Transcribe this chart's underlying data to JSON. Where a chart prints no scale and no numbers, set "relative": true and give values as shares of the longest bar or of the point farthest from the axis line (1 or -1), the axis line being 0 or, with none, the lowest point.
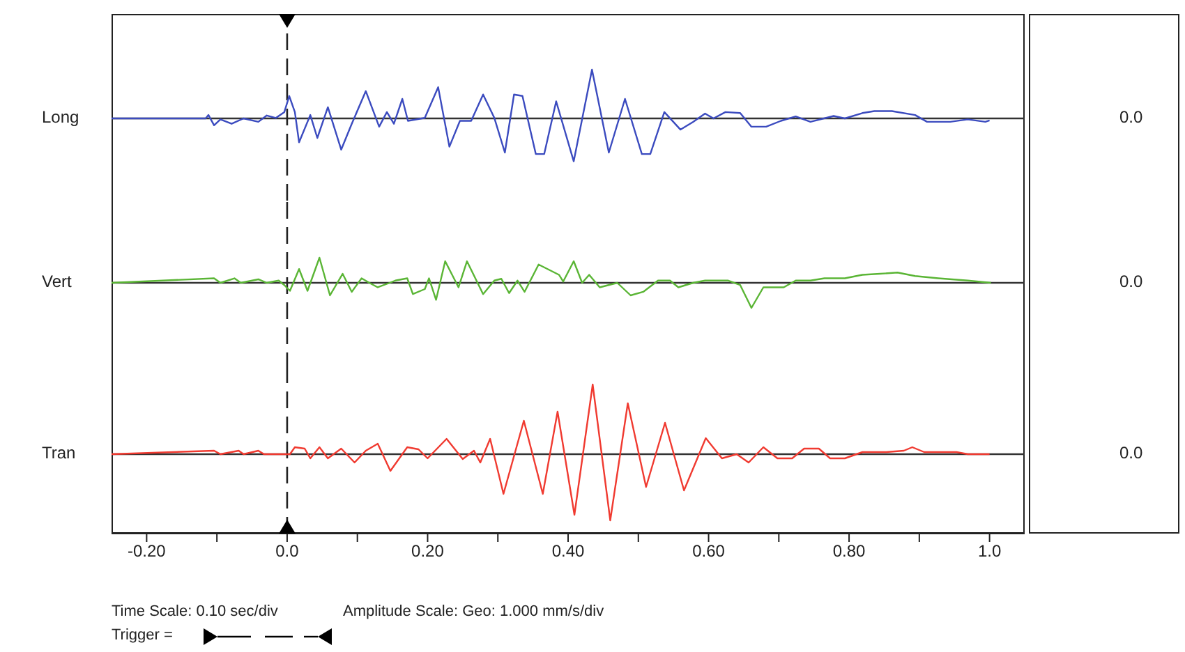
{
  "chart_data": [
    {
      "type": "line",
      "relative": true,
      "xlim": [
        -0.25,
        1.05
      ],
      "tick_labels": false,
      "series": [
        {
          "name": "Long",
          "color": "#3b4bbf",
          "x": [
            -0.25,
            -0.116,
            -0.112,
            -0.104,
            -0.095,
            -0.079,
            -0.062,
            -0.041,
            -0.029,
            -0.016,
            -0.004,
            0.003,
            0.011,
            0.017,
            0.033,
            0.043,
            0.058,
            0.077,
            0.092,
            0.112,
            0.131,
            0.142,
            0.152,
            0.164,
            0.172,
            0.196,
            0.215,
            0.231,
            0.246,
            0.262,
            0.279,
            0.295,
            0.31,
            0.323,
            0.335,
            0.354,
            0.366,
            0.383,
            0.408,
            0.434,
            0.458,
            0.481,
            0.505,
            0.517,
            0.537,
            0.56,
            0.578,
            0.595,
            0.607,
            0.624,
            0.645,
            0.661,
            0.682,
            0.703,
            0.724,
            0.745,
            0.778,
            0.794,
            0.819,
            0.836,
            0.861,
            0.894,
            0.911,
            0.944,
            0.969,
            0.994,
            1.0
          ],
          "values": [
            0,
            0,
            0.07,
            -0.14,
            -0.02,
            -0.11,
            0,
            -0.07,
            0.06,
            0.01,
            0.13,
            0.46,
            0.13,
            -0.49,
            0.07,
            -0.4,
            0.23,
            -0.64,
            -0.11,
            0.56,
            -0.17,
            0.13,
            -0.11,
            0.4,
            -0.05,
            0.01,
            0.64,
            -0.58,
            -0.05,
            -0.05,
            0.49,
            0.01,
            -0.7,
            0.49,
            0.46,
            -0.73,
            -0.73,
            0.35,
            -0.88,
            1,
            -0.7,
            0.4,
            -0.73,
            -0.73,
            0.13,
            -0.23,
            -0.07,
            0.1,
            0,
            0.13,
            0.11,
            -0.17,
            -0.17,
            -0.05,
            0.04,
            -0.07,
            0.05,
            0,
            0.11,
            0.15,
            0.15,
            0.07,
            -0.07,
            -0.07,
            -0.02,
            -0.07,
            -0.04
          ]
        }
      ],
      "ref_lines": [
        {
          "axis": "x",
          "value": 0,
          "line_style": "dashed"
        }
      ],
      "annotations": [
        "0.0"
      ]
    },
    {
      "type": "line",
      "relative": true,
      "xlim": [
        -0.25,
        1.05
      ],
      "tick_labels": false,
      "series": [
        {
          "name": "Vert",
          "color": "#5ab535",
          "x": [
            -0.25,
            -0.104,
            -0.095,
            -0.075,
            -0.066,
            -0.041,
            -0.029,
            -0.012,
            -0.004,
            0.004,
            0.017,
            0.029,
            0.046,
            0.061,
            0.079,
            0.092,
            0.106,
            0.117,
            0.129,
            0.146,
            0.154,
            0.171,
            0.179,
            0.196,
            0.202,
            0.212,
            0.225,
            0.244,
            0.256,
            0.279,
            0.295,
            0.305,
            0.316,
            0.328,
            0.338,
            0.358,
            0.387,
            0.393,
            0.408,
            0.42,
            0.43,
            0.445,
            0.47,
            0.489,
            0.507,
            0.528,
            0.545,
            0.557,
            0.578,
            0.595,
            0.628,
            0.645,
            0.661,
            0.678,
            0.707,
            0.724,
            0.745,
            0.765,
            0.794,
            0.819,
            0.844,
            0.869,
            0.894,
            0.927,
            0.969,
            1.002
          ],
          "values": [
            0,
            0.18,
            0,
            0.18,
            0,
            0.14,
            0,
            0.09,
            -0.09,
            -0.32,
            0.55,
            -0.32,
            1,
            -0.5,
            0.36,
            -0.36,
            0.18,
            0,
            -0.18,
            0,
            0.09,
            0.18,
            -0.45,
            -0.25,
            0.18,
            -0.68,
            0.86,
            -0.18,
            0.86,
            -0.45,
            0.09,
            0.16,
            -0.41,
            0.09,
            -0.36,
            0.73,
            0.32,
            0.05,
            0.86,
            0,
            0.32,
            -0.18,
            0,
            -0.5,
            -0.36,
            0.09,
            0.09,
            -0.18,
            0,
            0.09,
            0.09,
            -0.09,
            -1,
            -0.18,
            -0.18,
            0.09,
            0.09,
            0.18,
            0.18,
            0.32,
            0.36,
            0.41,
            0.27,
            0.18,
            0.09,
            0
          ]
        }
      ],
      "ref_lines": [
        {
          "axis": "x",
          "value": 0,
          "line_style": "dashed"
        }
      ],
      "annotations": [
        "0.0"
      ]
    },
    {
      "type": "line",
      "relative": true,
      "xlim": [
        -0.25,
        1.05
      ],
      "xticks": [
        {
          "value": -0.2,
          "label": "-0.20"
        },
        {
          "value": -0.1,
          "label": null
        },
        {
          "value": 0,
          "label": "0.0"
        },
        {
          "value": 0.1,
          "label": null
        },
        {
          "value": 0.2,
          "label": "0.20"
        },
        {
          "value": 0.3,
          "label": null
        },
        {
          "value": 0.4,
          "label": "0.40"
        },
        {
          "value": 0.5,
          "label": null
        },
        {
          "value": 0.6,
          "label": "0.60"
        },
        {
          "value": 0.7,
          "label": null
        },
        {
          "value": 0.8,
          "label": "0.80"
        },
        {
          "value": 0.9,
          "label": null
        },
        {
          "value": 1.0,
          "label": "1.0"
        }
      ],
      "tick_labels": "x",
      "series": [
        {
          "name": "Tran",
          "color": "#f03a30",
          "x": [
            -0.25,
            -0.104,
            -0.095,
            -0.069,
            -0.062,
            -0.041,
            -0.033,
            0.004,
            0.011,
            0.025,
            0.033,
            0.046,
            0.058,
            0.077,
            0.096,
            0.112,
            0.129,
            0.147,
            0.171,
            0.187,
            0.2,
            0.227,
            0.25,
            0.266,
            0.275,
            0.289,
            0.308,
            0.337,
            0.364,
            0.385,
            0.409,
            0.435,
            0.46,
            0.485,
            0.511,
            0.538,
            0.565,
            0.596,
            0.619,
            0.64,
            0.657,
            0.678,
            0.698,
            0.719,
            0.736,
            0.757,
            0.773,
            0.794,
            0.819,
            0.853,
            0.878,
            0.89,
            0.907,
            0.928,
            0.953,
            0.969,
            1.0
          ],
          "values": [
            0,
            0.05,
            0,
            0.05,
            0,
            0.05,
            0,
            0,
            0.1,
            0.08,
            -0.06,
            0.1,
            -0.06,
            0.08,
            -0.12,
            0.05,
            0.15,
            -0.24,
            0.1,
            0.07,
            -0.06,
            0.22,
            -0.07,
            0.05,
            -0.12,
            0.22,
            -0.57,
            0.48,
            -0.57,
            0.61,
            -0.87,
            1,
            -0.95,
            0.73,
            -0.47,
            0.45,
            -0.52,
            0.23,
            -0.06,
            0,
            -0.12,
            0.1,
            -0.06,
            -0.06,
            0.08,
            0.08,
            -0.06,
            -0.06,
            0.03,
            0.03,
            0.05,
            0.1,
            0.03,
            0.03,
            0.03,
            0,
            0
          ]
        }
      ],
      "ref_lines": [
        {
          "axis": "x",
          "value": 0,
          "line_style": "dashed"
        }
      ],
      "annotations": [
        "0.0",
        "Time Scale: 0.10 sec/div",
        "Amplitude Scale: Geo: 1.000 mm/s/div",
        "Trigger ="
      ]
    }
  ]
}
